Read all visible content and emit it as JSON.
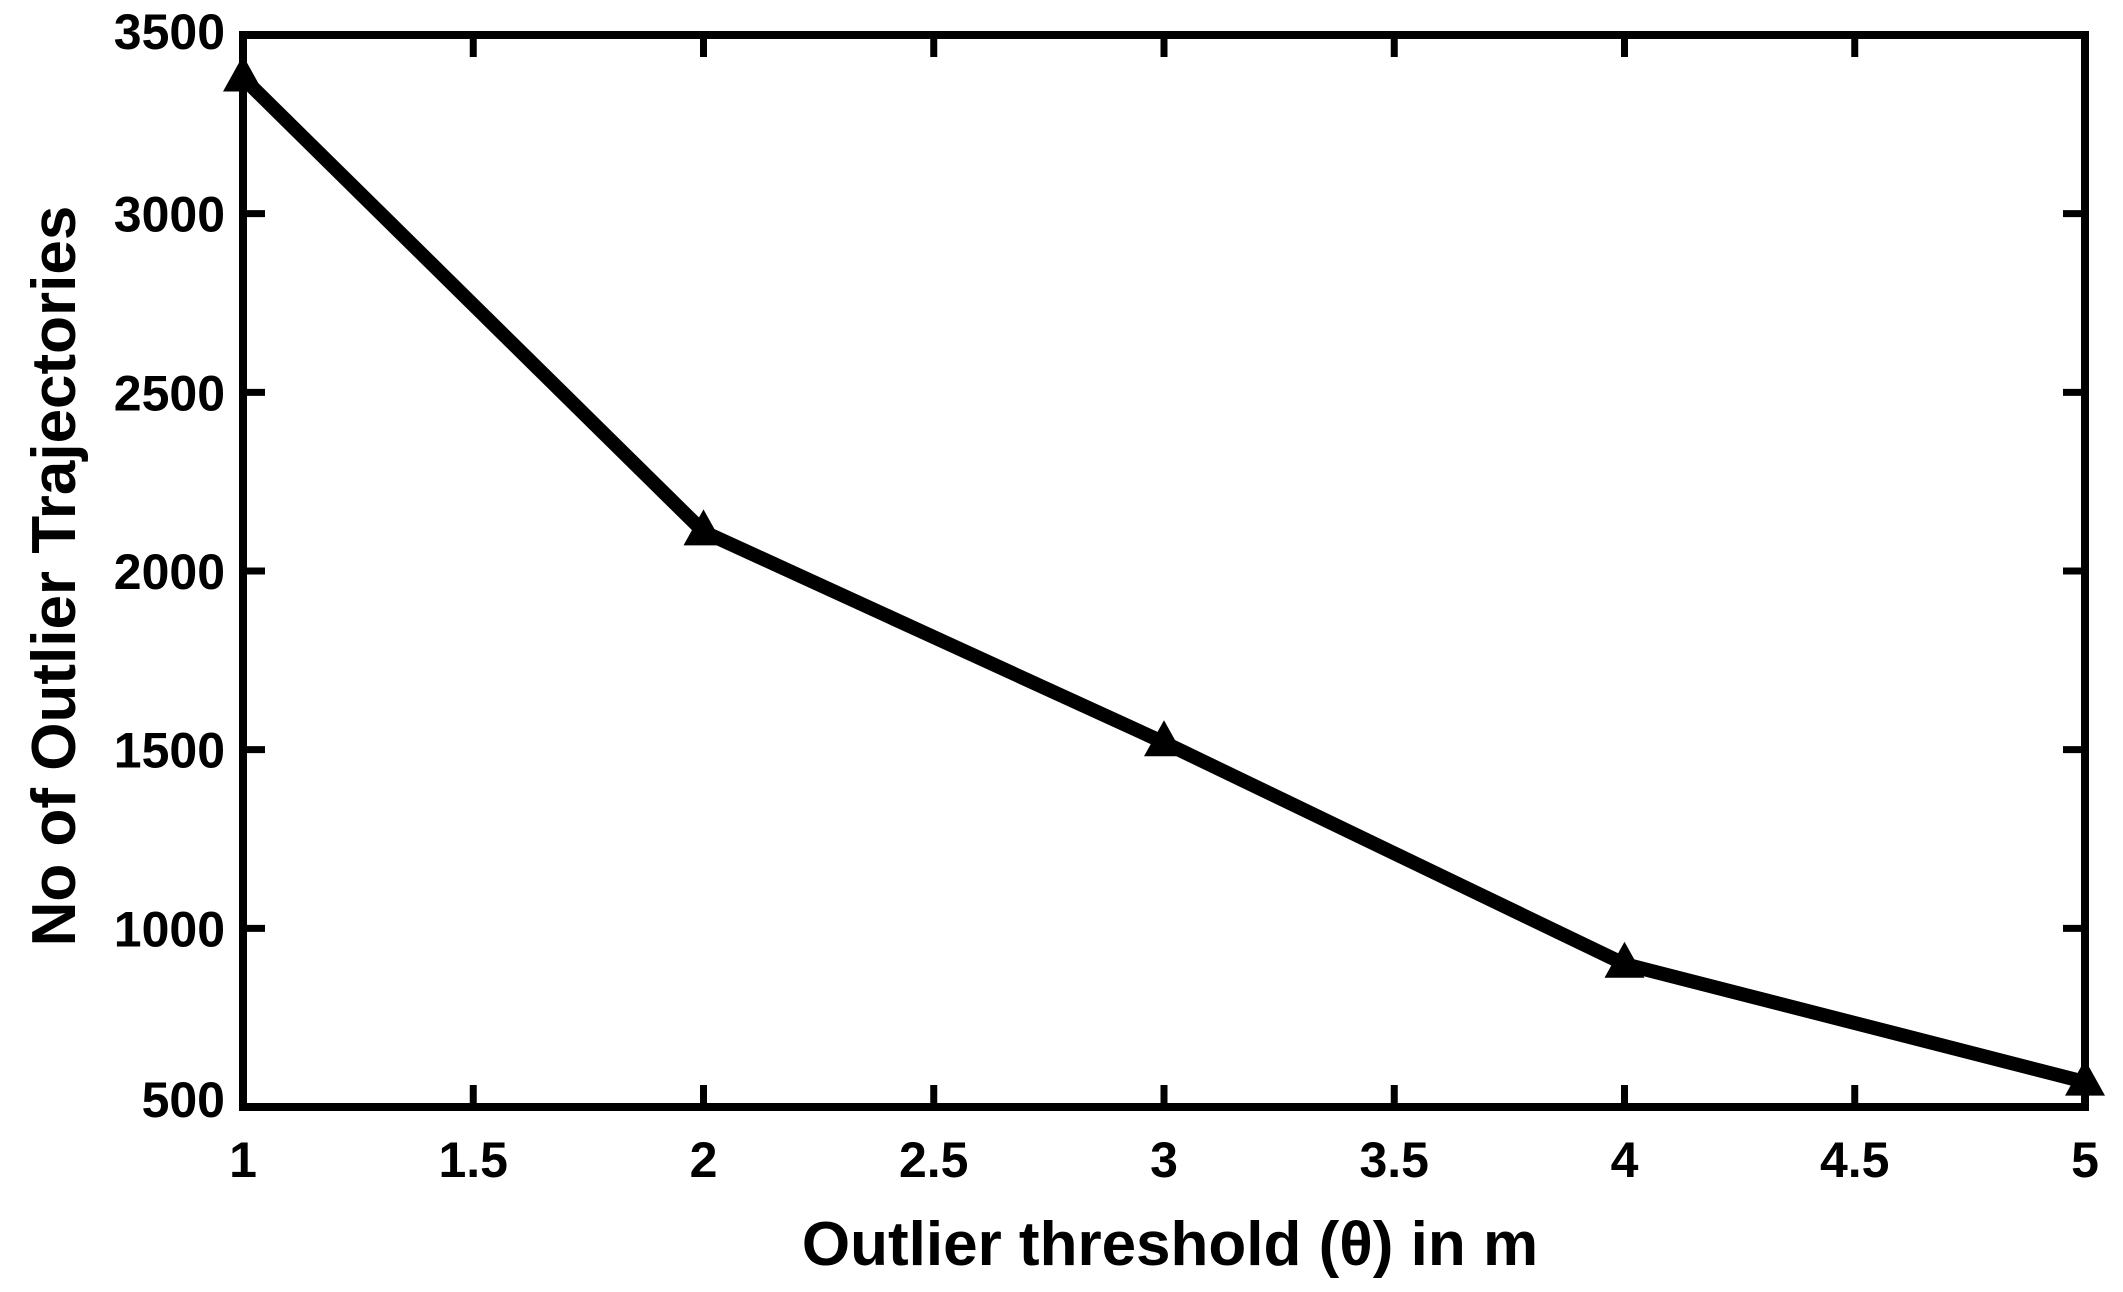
{
  "chart_data": {
    "type": "line",
    "title": "",
    "xlabel": "Outlier threshold (θ) in m",
    "ylabel": "No of Outlier Trajectories",
    "xlim": [
      1,
      5
    ],
    "ylim": [
      500,
      3500
    ],
    "x_ticks": [
      1,
      1.5,
      2,
      2.5,
      3,
      3.5,
      4,
      4.5,
      5
    ],
    "x_tick_labels": [
      "1",
      "1.5",
      "2",
      "2.5",
      "3",
      "3.5",
      "4",
      "4.5",
      "5"
    ],
    "y_ticks": [
      500,
      1000,
      1500,
      2000,
      2500,
      3000,
      3500
    ],
    "y_tick_labels": [
      "500",
      "1000",
      "1500",
      "2000",
      "2500",
      "3000",
      "3500"
    ],
    "grid": false,
    "marker": "triangle",
    "series": [
      {
        "x": [
          1,
          2,
          3,
          4,
          5
        ],
        "y": [
          3380,
          2110,
          1520,
          900,
          570
        ],
        "color": "#000000"
      }
    ]
  }
}
